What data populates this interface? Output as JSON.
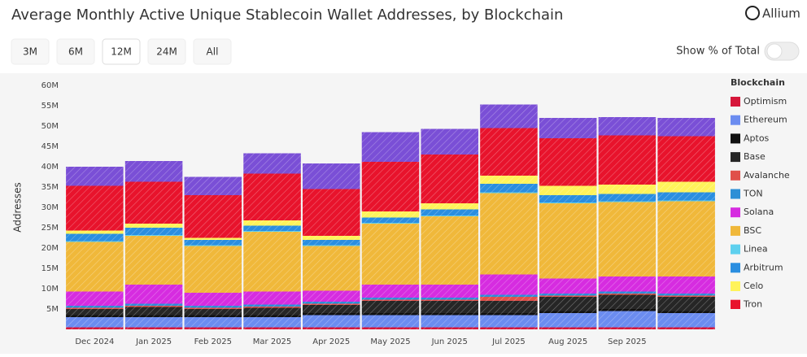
{
  "header": {
    "title": "Average Monthly Active Unique Stablecoin Wallet Addresses, by Blockchain",
    "logo": "Allium"
  },
  "controls": {
    "ranges": [
      {
        "label": "3M",
        "selected": false
      },
      {
        "label": "6M",
        "selected": false
      },
      {
        "label": "12M",
        "selected": true
      },
      {
        "label": "24M",
        "selected": false
      },
      {
        "label": "All",
        "selected": false
      }
    ],
    "toggle_label": "Show % of Total"
  },
  "chart_data": {
    "type": "stacked-bar",
    "y_label": "Addresses",
    "legend_title": "Blockchain",
    "categories": [
      "Dec 2024",
      "Jan 2025",
      "Feb 2025",
      "Mar 2025",
      "Apr 2025",
      "May 2025",
      "Jun 2025",
      "Jul 2025",
      "Aug 2025",
      "Sep 2025",
      null
    ],
    "ylim": [
      0,
      60
    ],
    "yticks": [
      {
        "value": 5,
        "label": "5M"
      },
      {
        "value": 10,
        "label": "10M"
      },
      {
        "value": 15,
        "label": "15M"
      },
      {
        "value": 20,
        "label": "20M"
      },
      {
        "value": 25,
        "label": "25M"
      },
      {
        "value": 30,
        "label": "30M"
      },
      {
        "value": 35,
        "label": "35M"
      },
      {
        "value": 40,
        "label": "40M"
      },
      {
        "value": 45,
        "label": "45M"
      },
      {
        "value": 50,
        "label": "50M"
      },
      {
        "value": 55,
        "label": "55M"
      },
      {
        "value": 60,
        "label": "60M"
      }
    ],
    "grid": false,
    "series": [
      {
        "name": "Optimism",
        "color": "#d6163a",
        "values": [
          0.5,
          0.5,
          0.5,
          0.5,
          0.5,
          0.5,
          0.5,
          0.5,
          0.5,
          0.5,
          0.5
        ]
      },
      {
        "name": "Ethereum",
        "color": "#6b8cf0",
        "values": [
          2.5,
          2.5,
          2.5,
          2.5,
          3,
          3,
          3,
          3,
          3.5,
          4,
          3.5
        ]
      },
      {
        "name": "Aptos",
        "color": "#111111",
        "values": [
          0.5,
          0.5,
          0.5,
          0.5,
          0.5,
          0.5,
          0.5,
          0.5,
          0.5,
          0.5,
          0.5
        ]
      },
      {
        "name": "Base",
        "color": "#262626",
        "values": [
          1.5,
          2,
          1.5,
          1.8,
          2,
          3,
          3,
          3,
          3.5,
          3.5,
          3.5
        ]
      },
      {
        "name": "Avalanche",
        "color": "#e0504a",
        "values": [
          0.3,
          0.3,
          0.3,
          0.3,
          0.3,
          0.3,
          0.3,
          1,
          0.3,
          0.3,
          0.3
        ]
      },
      {
        "name": "TON",
        "color": "#2c8fd6",
        "values": [
          0.5,
          0.5,
          0.5,
          0.5,
          0.5,
          0.5,
          0.5,
          0.5,
          0.5,
          0.5,
          0.5
        ]
      },
      {
        "name": "Solana",
        "color": "#d62ce0",
        "values": [
          3.5,
          4.7,
          3.2,
          3.2,
          2.7,
          3.2,
          3.2,
          5,
          3.7,
          3.7,
          4.2
        ]
      },
      {
        "name": "BSC",
        "color": "#f0b83a",
        "values": [
          12.2,
          12,
          11.5,
          14.7,
          11,
          15,
          16.8,
          20,
          18.5,
          18.3,
          18.5
        ]
      },
      {
        "name": "Linea",
        "color": "#5ed0ee",
        "values": [
          0.2,
          0.2,
          0.2,
          0.2,
          0.2,
          0.2,
          0.2,
          0.2,
          0.2,
          0.2,
          0.2
        ]
      },
      {
        "name": "Arbitrum",
        "color": "#2a8ee0",
        "values": [
          1.8,
          1.8,
          1.3,
          1.3,
          1.3,
          1.3,
          1.5,
          2.1,
          1.8,
          1.8,
          2
        ]
      },
      {
        "name": "Celo",
        "color": "#fff35a",
        "values": [
          0.8,
          1,
          0.5,
          1.3,
          1,
          1.5,
          1.5,
          2,
          2.3,
          2.3,
          2.6
        ]
      },
      {
        "name": "Tron",
        "color": "#e8132c",
        "values": [
          11,
          10.3,
          10.5,
          11.5,
          11.5,
          12.2,
          12,
          11.7,
          11.7,
          12.1,
          11.2
        ]
      },
      {
        "color": "#7a4fd6",
        "values": [
          4.7,
          5.1,
          4.5,
          5,
          6.3,
          7.3,
          6.3,
          5.8,
          5,
          4.5,
          4.5
        ]
      }
    ]
  }
}
